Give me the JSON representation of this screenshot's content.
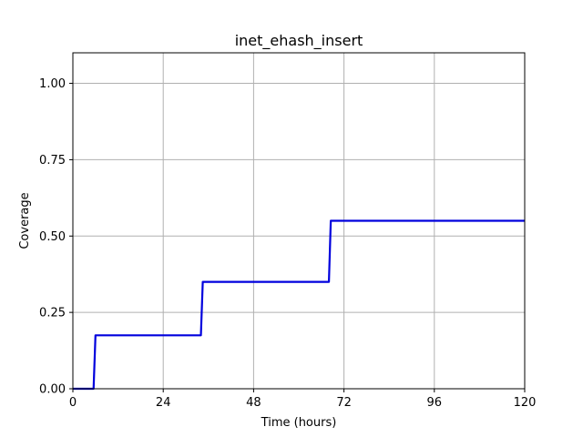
{
  "chart_data": {
    "type": "line",
    "title": "inet_ehash_insert",
    "xlabel": "Time (hours)",
    "ylabel": "Coverage",
    "xlim": [
      0,
      120
    ],
    "ylim": [
      0,
      1.1
    ],
    "xticks": [
      0,
      24,
      48,
      72,
      96,
      120
    ],
    "xtick_labels": [
      "0",
      "24",
      "48",
      "72",
      "96",
      "120"
    ],
    "yticks": [
      0,
      0.25,
      0.5,
      0.75,
      1.0
    ],
    "ytick_labels": [
      "0.00",
      "0.25",
      "0.50",
      "0.75",
      "1.00"
    ],
    "grid": true,
    "series": [
      {
        "color": "#0000dd",
        "x": [
          0,
          5.5,
          6.0,
          34.0,
          34.5,
          68.0,
          68.5,
          120
        ],
        "y": [
          0,
          0,
          0.175,
          0.175,
          0.35,
          0.35,
          0.55,
          0.55
        ]
      }
    ]
  }
}
